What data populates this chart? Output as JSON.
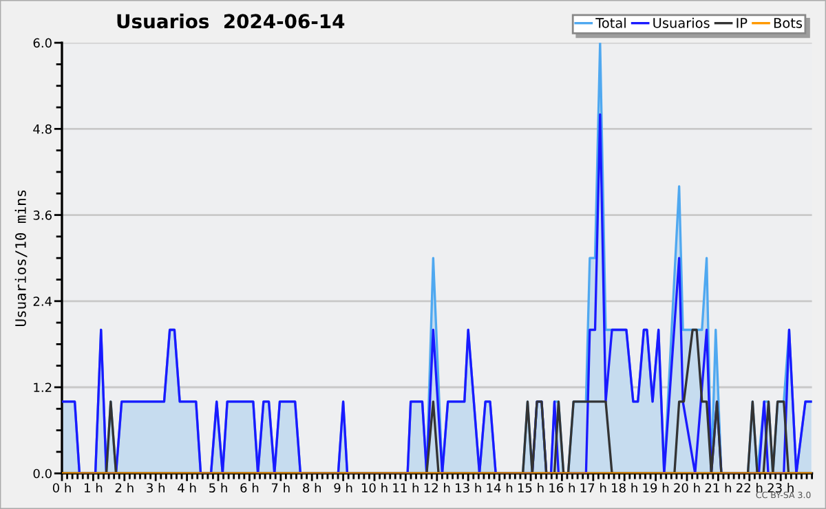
{
  "chart_data": {
    "type": "line",
    "title": "Usuarios  2024-06-14",
    "ylabel": "Usuarios/10 mins",
    "annotations": [
      "CC BY-SA 3.0"
    ],
    "xlim": [
      0,
      24
    ],
    "ylim": [
      0,
      6
    ],
    "xticks": [
      {
        "value": 0,
        "label": "0 h"
      },
      {
        "value": 1,
        "label": "1 h"
      },
      {
        "value": 2,
        "label": "2 h"
      },
      {
        "value": 3,
        "label": "3 h"
      },
      {
        "value": 4,
        "label": "4 h"
      },
      {
        "value": 5,
        "label": "5 h"
      },
      {
        "value": 6,
        "label": "6 h"
      },
      {
        "value": 7,
        "label": "7 h"
      },
      {
        "value": 8,
        "label": "8 h"
      },
      {
        "value": 9,
        "label": "9 h"
      },
      {
        "value": 10,
        "label": "10 h"
      },
      {
        "value": 11,
        "label": "11 h"
      },
      {
        "value": 12,
        "label": "12 h"
      },
      {
        "value": 13,
        "label": "13 h"
      },
      {
        "value": 14,
        "label": "14 h"
      },
      {
        "value": 15,
        "label": "15 h"
      },
      {
        "value": 16,
        "label": "16 h"
      },
      {
        "value": 17,
        "label": "17 h"
      },
      {
        "value": 18,
        "label": "18 h"
      },
      {
        "value": 19,
        "label": "19 h"
      },
      {
        "value": 20,
        "label": "20 h"
      },
      {
        "value": 21,
        "label": "21 h"
      },
      {
        "value": 22,
        "label": "22 h"
      },
      {
        "value": 23,
        "label": "23 h"
      }
    ],
    "yticks": [
      {
        "value": 0,
        "label": "0.0"
      },
      {
        "value": 1.2,
        "label": "1.2"
      },
      {
        "value": 2.4,
        "label": "2.4"
      },
      {
        "value": 3.6,
        "label": "3.6"
      },
      {
        "value": 4.8,
        "label": "4.8"
      },
      {
        "value": 6,
        "label": "6.0"
      }
    ],
    "grid": "y",
    "legend": "top right",
    "series": [
      {
        "name": "Total",
        "type": "area",
        "color": "#4fa8f0",
        "x": [
          0,
          0.41,
          0.56,
          1.07,
          1.25,
          1.42,
          1.56,
          1.73,
          1.91,
          3.27,
          3.45,
          3.6,
          3.77,
          4.29,
          4.44,
          4.77,
          4.95,
          5.14,
          5.29,
          6.12,
          6.27,
          6.45,
          6.62,
          6.8,
          6.97,
          7.46,
          7.63,
          8.84,
          9.0,
          9.13,
          11.06,
          11.16,
          11.53,
          11.67,
          11.88,
          12.17,
          12.35,
          12.88,
          13.0,
          13.36,
          13.55,
          13.7,
          13.88,
          14.75,
          14.9,
          15.05,
          15.2,
          15.35,
          15.5,
          15.65,
          15.76,
          15.89,
          16.05,
          16.2,
          16.37,
          16.77,
          16.89,
          17.06,
          17.22,
          17.4,
          17.6,
          18.06,
          18.28,
          18.43,
          18.62,
          18.72,
          18.9,
          19.09,
          19.27,
          19.75,
          19.87,
          20.18,
          20.31,
          20.48,
          20.63,
          20.78,
          20.92,
          21.1,
          21.95,
          22.1,
          22.25,
          22.47,
          22.61,
          22.75,
          22.9,
          23.1,
          23.27,
          23.5,
          23.79,
          23.98
        ],
        "values": [
          1,
          1,
          0,
          0,
          2,
          0,
          1,
          0,
          1,
          1,
          2,
          2,
          1,
          1,
          0,
          0,
          1,
          0,
          1,
          1,
          0,
          1,
          1,
          0,
          1,
          1,
          0,
          0,
          1,
          0,
          0,
          1,
          1,
          0,
          3,
          0,
          1,
          1,
          2,
          0,
          1,
          1,
          0,
          0,
          1,
          0,
          1,
          1,
          0,
          0,
          1,
          1,
          0,
          0,
          1,
          1,
          3,
          3,
          6,
          2,
          2,
          2,
          1,
          1,
          2,
          2,
          1,
          2,
          0,
          4,
          2,
          2,
          2,
          2,
          3,
          0,
          2,
          0,
          0,
          1,
          0,
          1,
          1,
          0,
          1,
          1,
          2,
          0,
          1,
          1
        ]
      },
      {
        "name": "Usuarios",
        "color": "#1a1aff",
        "x": [
          0,
          0.41,
          0.56,
          1.07,
          1.25,
          1.42,
          1.73,
          1.91,
          3.27,
          3.45,
          3.6,
          3.77,
          4.29,
          4.44,
          4.77,
          4.95,
          5.14,
          5.29,
          6.12,
          6.27,
          6.45,
          6.62,
          6.8,
          6.97,
          7.46,
          7.63,
          8.84,
          9.0,
          9.13,
          11.06,
          11.16,
          11.53,
          11.67,
          11.88,
          12.17,
          12.35,
          12.88,
          13.0,
          13.36,
          13.55,
          13.7,
          13.88,
          15.05,
          15.2,
          15.35,
          15.5,
          15.65,
          15.76,
          15.89,
          16.77,
          16.89,
          17.06,
          17.22,
          17.4,
          17.6,
          18.06,
          18.28,
          18.43,
          18.62,
          18.72,
          18.9,
          19.09,
          19.27,
          19.75,
          19.87,
          20.26,
          20.63,
          20.78,
          20.96,
          21.1,
          22.3,
          22.47,
          22.6,
          23.1,
          23.27,
          23.5,
          23.79,
          23.98
        ],
        "values": [
          1,
          1,
          0,
          0,
          2,
          0,
          0,
          1,
          1,
          2,
          2,
          1,
          1,
          0,
          0,
          1,
          0,
          1,
          1,
          0,
          1,
          1,
          0,
          1,
          1,
          0,
          0,
          1,
          0,
          0,
          1,
          1,
          0,
          2,
          0,
          1,
          1,
          2,
          0,
          1,
          1,
          0,
          0,
          1,
          1,
          0,
          0,
          1,
          0,
          0,
          2,
          2,
          5,
          1,
          2,
          2,
          1,
          1,
          2,
          2,
          1,
          2,
          0,
          3,
          1,
          0,
          2,
          0,
          1,
          0,
          0,
          1,
          0,
          0,
          2,
          0,
          1,
          1
        ]
      },
      {
        "name": "IP",
        "color": "#333333",
        "x": [
          0,
          1.42,
          1.56,
          1.73,
          11.67,
          11.88,
          12.05,
          14.75,
          14.9,
          15.05,
          15.2,
          15.35,
          15.5,
          15.76,
          15.89,
          16.05,
          16.2,
          16.37,
          17.4,
          17.6,
          19.6,
          19.75,
          19.9,
          20.18,
          20.31,
          20.48,
          20.63,
          20.78,
          20.96,
          21.1,
          21.95,
          22.1,
          22.25,
          22.45,
          22.61,
          22.75,
          22.9,
          23.1,
          23.25,
          23.98
        ],
        "values": [
          0,
          0,
          1,
          0,
          0,
          1,
          0,
          0,
          1,
          0,
          1,
          1,
          0,
          0,
          1,
          0,
          0,
          1,
          1,
          0,
          0,
          1,
          1,
          2,
          2,
          1,
          1,
          0,
          1,
          0,
          0,
          1,
          0,
          0,
          1,
          0,
          1,
          1,
          0,
          0
        ]
      },
      {
        "name": "Bots",
        "color": "#ff9900",
        "x": [
          0,
          23.98
        ],
        "values": [
          0,
          0
        ]
      }
    ]
  }
}
